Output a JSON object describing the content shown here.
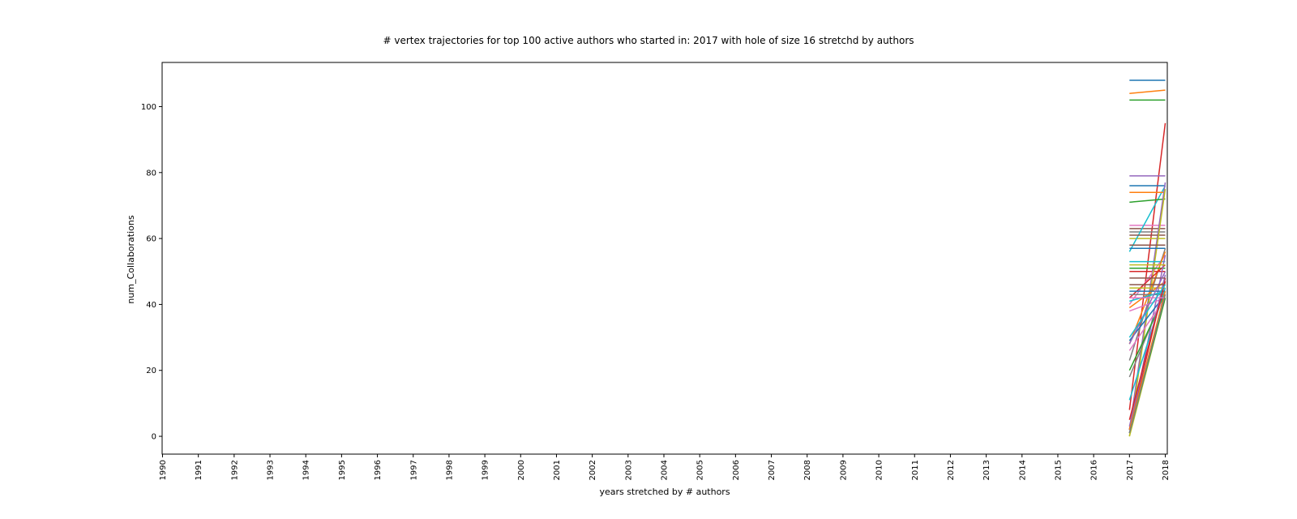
{
  "chart_data": {
    "type": "line",
    "title": "# vertex trajectories for top 100 active authors who started in: 2017 with hole of size 16 stretchd by authors",
    "xlabel": "years stretched by # authors",
    "ylabel": "num_Collaborations",
    "ylim": [
      -5.4,
      113.4
    ],
    "x_ticks": [
      "1990",
      "1991",
      "1992",
      "1993",
      "1994",
      "1995",
      "1996",
      "1997",
      "1998",
      "1999",
      "2000",
      "2001",
      "2002",
      "2003",
      "2004",
      "2005",
      "2006",
      "2007",
      "2008",
      "2009",
      "2010",
      "2011",
      "2012",
      "2013",
      "2014",
      "2015",
      "2016",
      "2017",
      "2018"
    ],
    "y_ticks": [
      0,
      20,
      40,
      60,
      80,
      100
    ],
    "grid": false,
    "x": [
      "2017",
      "2018"
    ],
    "colors": [
      "#1f77b4",
      "#ff7f0e",
      "#2ca02c",
      "#d62728",
      "#9467bd",
      "#8c564b",
      "#e377c2",
      "#7f7f7f",
      "#bcbd22",
      "#17becf"
    ],
    "series": [
      {
        "values": [
          108,
          108
        ]
      },
      {
        "values": [
          104,
          105
        ]
      },
      {
        "values": [
          102,
          102
        ]
      },
      {
        "values": [
          8,
          95
        ]
      },
      {
        "values": [
          79,
          79
        ]
      },
      {
        "values": [
          63,
          63
        ]
      },
      {
        "values": [
          64,
          64
        ]
      },
      {
        "values": [
          62,
          62
        ]
      },
      {
        "values": [
          60,
          60
        ]
      },
      {
        "values": [
          56,
          76
        ]
      },
      {
        "values": [
          76,
          76
        ]
      },
      {
        "values": [
          74,
          74
        ]
      },
      {
        "values": [
          71,
          72
        ]
      },
      {
        "values": [
          50,
          50
        ]
      },
      {
        "values": [
          2,
          77
        ]
      },
      {
        "values": [
          61,
          61
        ]
      },
      {
        "values": [
          40,
          55
        ]
      },
      {
        "values": [
          23,
          57
        ]
      },
      {
        "values": [
          0,
          75
        ]
      },
      {
        "values": [
          53,
          53
        ]
      },
      {
        "values": [
          57,
          57
        ]
      },
      {
        "values": [
          28,
          56
        ]
      },
      {
        "values": [
          51,
          51
        ]
      },
      {
        "values": [
          42,
          52
        ]
      },
      {
        "values": [
          1,
          55
        ]
      },
      {
        "values": [
          58,
          58
        ]
      },
      {
        "values": [
          38,
          42
        ]
      },
      {
        "values": [
          18,
          44
        ]
      },
      {
        "values": [
          45,
          45
        ]
      },
      {
        "values": [
          11,
          45
        ]
      },
      {
        "values": [
          29,
          43
        ]
      },
      {
        "values": [
          39,
          47
        ]
      },
      {
        "values": [
          20,
          43
        ]
      },
      {
        "values": [
          2,
          48
        ]
      },
      {
        "values": [
          3,
          49
        ]
      },
      {
        "values": [
          48,
          48
        ]
      },
      {
        "values": [
          26,
          42
        ]
      },
      {
        "values": [
          43,
          43
        ]
      },
      {
        "values": [
          0,
          42
        ]
      },
      {
        "values": [
          41,
          44
        ]
      },
      {
        "values": [
          44,
          44
        ]
      },
      {
        "values": [
          2,
          44
        ]
      },
      {
        "values": [
          1,
          42
        ]
      },
      {
        "values": [
          5,
          47
        ]
      },
      {
        "values": [
          28,
          50
        ]
      },
      {
        "values": [
          46,
          46
        ]
      },
      {
        "values": [
          42,
          42
        ]
      },
      {
        "values": [
          1,
          43
        ]
      },
      {
        "values": [
          52,
          52
        ]
      },
      {
        "values": [
          30,
          46
        ]
      }
    ]
  }
}
